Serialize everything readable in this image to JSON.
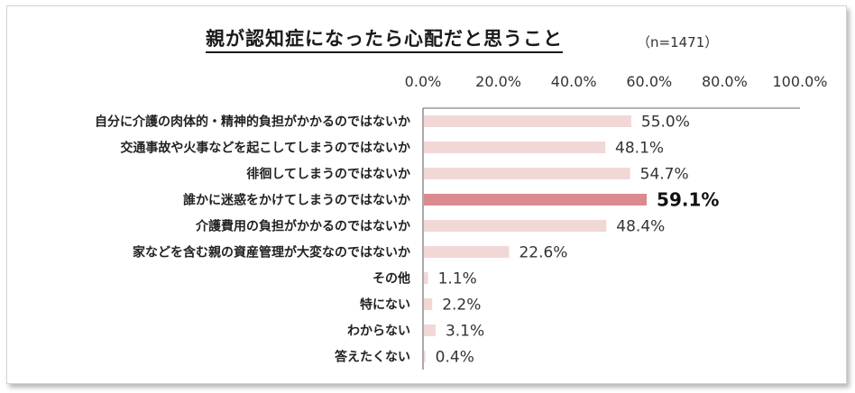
{
  "chart_data": {
    "type": "bar",
    "orientation": "horizontal",
    "title": "親が認知症になったら心配だと思うこと",
    "subtitle": "（n=1471）",
    "xlim": [
      0,
      100
    ],
    "x_ticks": [
      "0.0%",
      "20.0%",
      "40.0%",
      "60.0%",
      "80.0%",
      "100.0%"
    ],
    "x_tick_values": [
      0,
      20,
      40,
      60,
      80,
      100
    ],
    "categories": [
      "自分に介護の肉体的・精神的負担がかかるのではないか",
      "交通事故や火事などを起こしてしまうのではないか",
      "徘徊してしまうのではないか",
      "誰かに迷惑をかけてしまうのではないか",
      "介護費用の負担がかかるのではないか",
      "家などを含む親の資産管理が大変なのではないか",
      "その他",
      "特にない",
      "わからない",
      "答えたくない"
    ],
    "values": [
      55.0,
      48.1,
      54.7,
      59.1,
      48.4,
      22.6,
      1.1,
      2.2,
      3.1,
      0.4
    ],
    "value_labels": [
      "55.0%",
      "48.1%",
      "54.7%",
      "59.1%",
      "48.4%",
      "22.6%",
      "1.1%",
      "2.2%",
      "3.1%",
      "0.4%"
    ],
    "highlight_index": 3,
    "colors": {
      "bar": "#f2d7d7",
      "highlight": "#d98b8f",
      "axis": "#555555"
    }
  }
}
